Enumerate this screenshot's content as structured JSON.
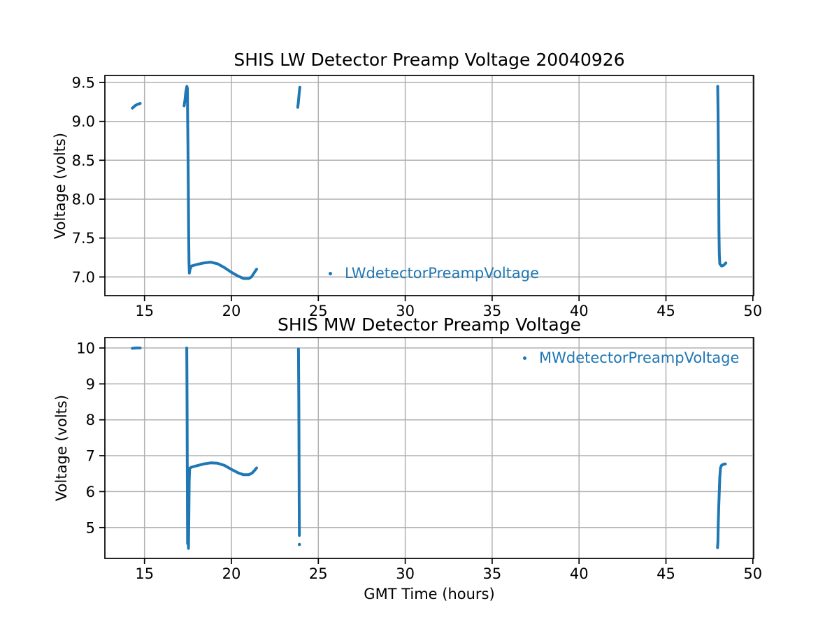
{
  "figure": {
    "background": "#ffffff",
    "accent_color": "#1f77b4",
    "grid_color": "#b0b0b0",
    "axis_color": "#000000",
    "text_color": "#000000"
  },
  "chart_data": [
    {
      "id": "lw",
      "type": "scatter",
      "title": "SHIS LW Detector Preamp Voltage 20040926",
      "xlabel": "",
      "ylabel": "Voltage (volts)",
      "legend": "LWdetectorPreampVoltage",
      "legend_loc": "lower center",
      "color": "#1f77b4",
      "grid": true,
      "xlim": [
        12.72,
        50.05
      ],
      "ylim": [
        6.76,
        9.59
      ],
      "xticks": [
        15,
        20,
        25,
        30,
        35,
        40,
        45,
        50
      ],
      "yticks": [
        "7.0",
        "7.5",
        "8.0",
        "8.5",
        "9.0",
        "9.5"
      ],
      "series": [
        {
          "name": "LWdetectorPreampVoltage",
          "segments": [
            [
              [
                14.3,
                9.17
              ],
              [
                14.45,
                9.2
              ],
              [
                14.6,
                9.22
              ],
              [
                14.75,
                9.23
              ]
            ],
            [
              [
                17.28,
                9.2
              ],
              [
                17.33,
                9.28
              ],
              [
                17.38,
                9.38
              ],
              [
                17.44,
                9.45
              ],
              [
                17.47,
                9.42
              ],
              [
                17.48,
                9.1
              ],
              [
                17.5,
                8.72
              ],
              [
                17.52,
                8.2
              ],
              [
                17.54,
                7.6
              ],
              [
                17.56,
                7.2
              ],
              [
                17.58,
                7.05
              ],
              [
                17.62,
                7.1
              ],
              [
                17.7,
                7.14
              ],
              [
                18.0,
                7.16
              ],
              [
                18.4,
                7.18
              ],
              [
                18.8,
                7.19
              ],
              [
                19.2,
                7.17
              ],
              [
                19.6,
                7.12
              ],
              [
                20.0,
                7.06
              ],
              [
                20.4,
                7.01
              ],
              [
                20.7,
                6.98
              ],
              [
                21.0,
                6.98
              ],
              [
                21.15,
                7.0
              ],
              [
                21.3,
                7.05
              ],
              [
                21.45,
                7.1
              ]
            ],
            [
              [
                23.82,
                9.18
              ],
              [
                23.86,
                9.26
              ],
              [
                23.9,
                9.36
              ],
              [
                23.94,
                9.44
              ]
            ],
            [
              [
                47.98,
                9.45
              ],
              [
                48.0,
                9.14
              ],
              [
                48.02,
                8.6
              ],
              [
                48.04,
                8.08
              ],
              [
                48.05,
                7.6
              ],
              [
                48.07,
                7.3
              ],
              [
                48.1,
                7.17
              ],
              [
                48.2,
                7.14
              ],
              [
                48.32,
                7.15
              ],
              [
                48.45,
                7.18
              ]
            ]
          ]
        }
      ]
    },
    {
      "id": "mw",
      "type": "scatter",
      "title": "SHIS MW Detector Preamp Voltage",
      "xlabel": "GMT Time (hours)",
      "ylabel": "Voltage (volts)",
      "legend": "MWdetectorPreampVoltage",
      "legend_loc": "upper right",
      "color": "#1f77b4",
      "grid": true,
      "xlim": [
        12.72,
        50.05
      ],
      "ylim": [
        4.14,
        10.29
      ],
      "xticks": [
        15,
        20,
        25,
        30,
        35,
        40,
        45,
        50
      ],
      "yticks": [
        "5",
        "6",
        "7",
        "8",
        "9",
        "10"
      ],
      "series": [
        {
          "name": "MWdetectorPreampVoltage",
          "segments": [
            [
              [
                14.3,
                9.99
              ],
              [
                14.5,
                10.0
              ],
              [
                14.75,
                10.0
              ]
            ],
            [
              [
                17.43,
                10.0
              ],
              [
                17.44,
                9.4
              ],
              [
                17.45,
                8.2
              ],
              [
                17.46,
                7.0
              ],
              [
                17.47,
                5.5
              ],
              [
                17.48,
                4.55
              ],
              [
                17.5,
                5.4
              ],
              [
                17.52,
                4.7
              ],
              [
                17.53,
                4.42
              ],
              [
                17.55,
                5.3
              ],
              [
                17.57,
                6.3
              ],
              [
                17.6,
                6.65
              ],
              [
                17.7,
                6.68
              ],
              [
                18.0,
                6.72
              ],
              [
                18.4,
                6.77
              ],
              [
                18.8,
                6.8
              ],
              [
                19.2,
                6.79
              ],
              [
                19.6,
                6.73
              ],
              [
                20.0,
                6.62
              ],
              [
                20.4,
                6.52
              ],
              [
                20.7,
                6.47
              ],
              [
                21.0,
                6.47
              ],
              [
                21.2,
                6.52
              ],
              [
                21.35,
                6.6
              ],
              [
                21.45,
                6.66
              ]
            ],
            [
              [
                23.86,
                9.97
              ],
              [
                23.88,
                8.5
              ],
              [
                23.89,
                7.0
              ],
              [
                23.9,
                5.8
              ],
              [
                23.91,
                4.78
              ]
            ],
            [
              [
                23.91,
                4.53
              ]
            ],
            [
              [
                47.97,
                4.44
              ],
              [
                47.99,
                4.6
              ],
              [
                48.01,
                5.1
              ],
              [
                48.04,
                5.58
              ],
              [
                48.07,
                6.0
              ],
              [
                48.1,
                6.4
              ],
              [
                48.14,
                6.66
              ],
              [
                48.2,
                6.73
              ],
              [
                48.3,
                6.76
              ],
              [
                48.42,
                6.77
              ]
            ]
          ]
        }
      ]
    }
  ]
}
